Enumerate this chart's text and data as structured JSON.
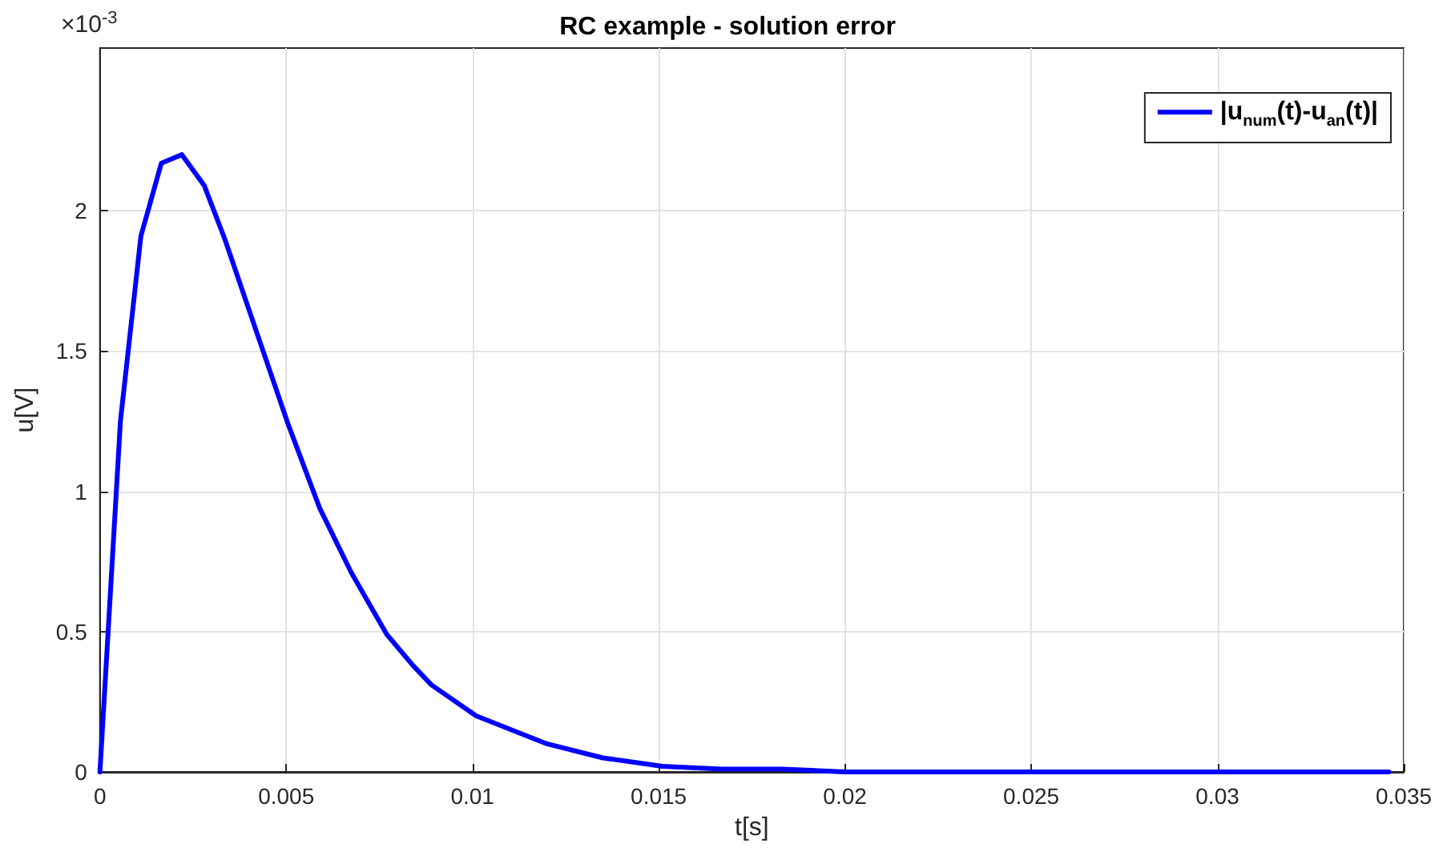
{
  "chart_data": {
    "type": "line",
    "title": "RC example - solution error",
    "xlabel": "t[s]",
    "ylabel": "u[V]",
    "annotations": [
      "×10$^{-3}$"
    ],
    "x": [
      0,
      0.00055,
      0.0011,
      0.00165,
      0.0022,
      0.0028,
      0.00335,
      0.0042,
      0.00505,
      0.0059,
      0.00675,
      0.0077,
      0.0084,
      0.0089,
      0.0101,
      0.012,
      0.0135,
      0.0151,
      0.0167,
      0.0183,
      0.02,
      0.025,
      0.03,
      0.0346
    ],
    "series": [
      {
        "name": "|u$_{num}$(t)-u$_{an}$(t)|",
        "color": "#0000ff",
        "values": [
          0,
          1.25,
          1.91,
          2.17,
          2.2,
          2.09,
          1.9,
          1.57,
          1.24,
          0.94,
          0.71,
          0.49,
          0.38,
          0.31,
          0.2,
          0.1,
          0.05,
          0.02,
          0.01,
          0.01,
          0,
          0,
          0,
          0
        ]
      }
    ],
    "xlim": [
      0,
      0.035
    ],
    "xticks": [
      0,
      0.005,
      0.01,
      0.015,
      0.02,
      0.025,
      0.03,
      0.035
    ],
    "ylim": [
      0,
      2.58
    ],
    "yticks": [
      0,
      0.5,
      1,
      1.5,
      2
    ],
    "grid": true,
    "legend": "top right",
    "marker": "none",
    "line_style": "solid"
  }
}
